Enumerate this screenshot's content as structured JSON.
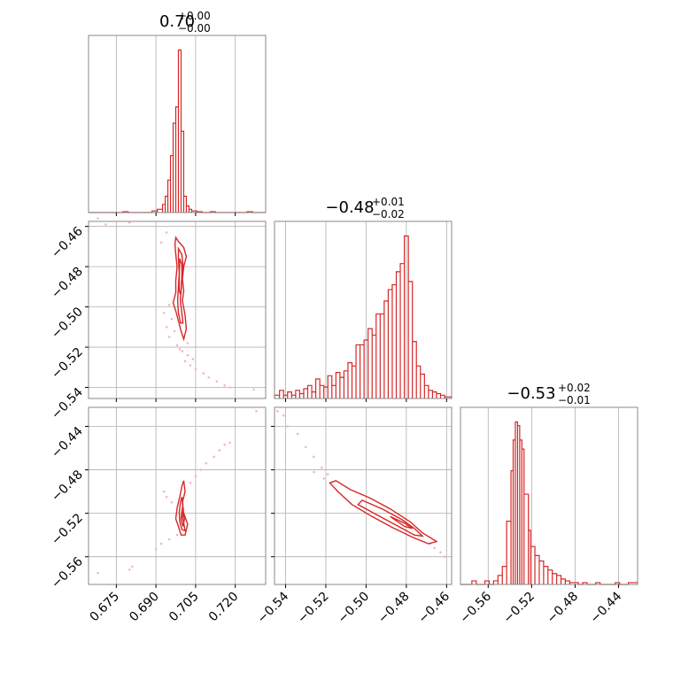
{
  "chart_data": [
    {
      "panel": "hist-p0",
      "type": "histogram",
      "title": {
        "value": "0.70",
        "plus": "+0.00",
        "minus": "−0.00"
      },
      "xlim": [
        0.6645,
        0.7315
      ],
      "x_ticks": [
        0.675,
        0.69,
        0.705,
        0.72
      ],
      "bins": [
        [
          0.6775,
          0.6795,
          0.005
        ],
        [
          0.6885,
          0.6905,
          0.01
        ],
        [
          0.6905,
          0.6925,
          0.02
        ],
        [
          0.6925,
          0.6935,
          0.05
        ],
        [
          0.6935,
          0.6945,
          0.1
        ],
        [
          0.6945,
          0.6955,
          0.2
        ],
        [
          0.6955,
          0.6965,
          0.35
        ],
        [
          0.6965,
          0.6975,
          0.55
        ],
        [
          0.6975,
          0.6985,
          0.65
        ],
        [
          0.6985,
          0.6995,
          1.0
        ],
        [
          0.6995,
          0.7005,
          0.5
        ],
        [
          0.7005,
          0.7015,
          0.1
        ],
        [
          0.7015,
          0.7025,
          0.04
        ],
        [
          0.7025,
          0.7035,
          0.02
        ],
        [
          0.7035,
          0.7055,
          0.01
        ],
        [
          0.7055,
          0.7075,
          0.005
        ],
        [
          0.7105,
          0.7125,
          0.005
        ],
        [
          0.7245,
          0.7265,
          0.005
        ]
      ]
    },
    {
      "panel": "hist-p1",
      "type": "histogram",
      "title": {
        "value": "−0.48",
        "plus": "+0.01",
        "minus": "−0.02"
      },
      "xlim": [
        -0.5455,
        -0.4575
      ],
      "x_ticks": [
        -0.54,
        -0.52,
        -0.5,
        -0.48,
        -0.46
      ],
      "ytick_labels_hidden": true,
      "bins": [
        [
          -0.5455,
          -0.543,
          0.02
        ],
        [
          -0.543,
          -0.541,
          0.05
        ],
        [
          -0.541,
          -0.539,
          0.02
        ],
        [
          -0.539,
          -0.537,
          0.04
        ],
        [
          -0.537,
          -0.535,
          0.02
        ],
        [
          -0.535,
          -0.533,
          0.05
        ],
        [
          -0.533,
          -0.531,
          0.03
        ],
        [
          -0.531,
          -0.529,
          0.06
        ],
        [
          -0.529,
          -0.527,
          0.08
        ],
        [
          -0.527,
          -0.525,
          0.04
        ],
        [
          -0.525,
          -0.523,
          0.12
        ],
        [
          -0.523,
          -0.521,
          0.08
        ],
        [
          -0.521,
          -0.519,
          0.07
        ],
        [
          -0.519,
          -0.517,
          0.14
        ],
        [
          -0.517,
          -0.515,
          0.08
        ],
        [
          -0.515,
          -0.513,
          0.16
        ],
        [
          -0.513,
          -0.511,
          0.13
        ],
        [
          -0.511,
          -0.509,
          0.17
        ],
        [
          -0.509,
          -0.507,
          0.22
        ],
        [
          -0.507,
          -0.505,
          0.2
        ],
        [
          -0.505,
          -0.503,
          0.33
        ],
        [
          -0.503,
          -0.501,
          0.33
        ],
        [
          -0.501,
          -0.499,
          0.36
        ],
        [
          -0.499,
          -0.497,
          0.43
        ],
        [
          -0.497,
          -0.495,
          0.39
        ],
        [
          -0.495,
          -0.493,
          0.52
        ],
        [
          -0.493,
          -0.491,
          0.52
        ],
        [
          -0.491,
          -0.489,
          0.6
        ],
        [
          -0.489,
          -0.487,
          0.67
        ],
        [
          -0.487,
          -0.485,
          0.7
        ],
        [
          -0.485,
          -0.483,
          0.78
        ],
        [
          -0.483,
          -0.481,
          0.83
        ],
        [
          -0.481,
          -0.479,
          1.0
        ],
        [
          -0.479,
          -0.477,
          0.72
        ],
        [
          -0.477,
          -0.475,
          0.35
        ],
        [
          -0.475,
          -0.473,
          0.2
        ],
        [
          -0.473,
          -0.471,
          0.15
        ],
        [
          -0.471,
          -0.469,
          0.08
        ],
        [
          -0.469,
          -0.467,
          0.05
        ],
        [
          -0.467,
          -0.465,
          0.04
        ],
        [
          -0.465,
          -0.463,
          0.03
        ],
        [
          -0.463,
          -0.461,
          0.02
        ],
        [
          -0.461,
          -0.4575,
          0.01
        ]
      ]
    },
    {
      "panel": "hist-p2",
      "type": "histogram",
      "title": {
        "value": "−0.53",
        "plus": "+0.02",
        "minus": "−0.01"
      },
      "xlim": [
        -0.5855,
        -0.4225
      ],
      "x_ticks": [
        -0.56,
        -0.52,
        -0.48,
        -0.44
      ],
      "bins": [
        [
          -0.575,
          -0.571,
          0.02
        ],
        [
          -0.563,
          -0.559,
          0.02
        ],
        [
          -0.555,
          -0.551,
          0.02
        ],
        [
          -0.551,
          -0.547,
          0.05
        ],
        [
          -0.547,
          -0.543,
          0.1
        ],
        [
          -0.543,
          -0.539,
          0.35
        ],
        [
          -0.539,
          -0.537,
          0.63
        ],
        [
          -0.537,
          -0.535,
          0.8
        ],
        [
          -0.535,
          -0.533,
          0.9
        ],
        [
          -0.533,
          -0.531,
          0.88
        ],
        [
          -0.531,
          -0.529,
          0.8
        ],
        [
          -0.529,
          -0.527,
          0.75
        ],
        [
          -0.527,
          -0.523,
          0.5
        ],
        [
          -0.523,
          -0.521,
          0.3
        ],
        [
          -0.521,
          -0.517,
          0.21
        ],
        [
          -0.517,
          -0.513,
          0.16
        ],
        [
          -0.513,
          -0.509,
          0.13
        ],
        [
          -0.509,
          -0.505,
          0.1
        ],
        [
          -0.505,
          -0.501,
          0.08
        ],
        [
          -0.501,
          -0.497,
          0.06
        ],
        [
          -0.497,
          -0.493,
          0.05
        ],
        [
          -0.493,
          -0.489,
          0.03
        ],
        [
          -0.489,
          -0.485,
          0.02
        ],
        [
          -0.485,
          -0.477,
          0.01
        ],
        [
          -0.473,
          -0.469,
          0.01
        ],
        [
          -0.461,
          -0.457,
          0.01
        ],
        [
          -0.443,
          -0.439,
          0.01
        ],
        [
          -0.431,
          -0.4225,
          0.01
        ]
      ]
    },
    {
      "panel": "corner-p0-p1",
      "type": "contour-scatter",
      "xlim": [
        0.6645,
        0.7315
      ],
      "ylim": [
        -0.5455,
        -0.4575
      ],
      "x_ticks": [
        0.675,
        0.69,
        0.705,
        0.72
      ],
      "y_ticks": [
        -0.46,
        -0.48,
        -0.5,
        -0.52,
        -0.54
      ],
      "contours": [
        [
          [
            0.6975,
            -0.4655
          ],
          [
            0.6985,
            -0.4675
          ],
          [
            0.7005,
            -0.4705
          ],
          [
            0.7015,
            -0.475
          ],
          [
            0.7005,
            -0.48
          ],
          [
            0.7,
            -0.486
          ],
          [
            0.7005,
            -0.492
          ],
          [
            0.7,
            -0.497
          ],
          [
            0.701,
            -0.504
          ],
          [
            0.7015,
            -0.511
          ],
          [
            0.7005,
            -0.516
          ],
          [
            0.6995,
            -0.512
          ],
          [
            0.6985,
            -0.507
          ],
          [
            0.6975,
            -0.502
          ],
          [
            0.6965,
            -0.498
          ],
          [
            0.6975,
            -0.493
          ],
          [
            0.6975,
            -0.487
          ],
          [
            0.698,
            -0.48
          ],
          [
            0.6975,
            -0.474
          ],
          [
            0.6972,
            -0.469
          ],
          [
            0.6975,
            -0.4655
          ]
        ],
        [
          [
            0.6985,
            -0.471
          ],
          [
            0.6998,
            -0.474
          ],
          [
            0.7002,
            -0.479
          ],
          [
            0.6998,
            -0.485
          ],
          [
            0.6995,
            -0.491
          ],
          [
            0.6992,
            -0.497
          ],
          [
            0.6998,
            -0.503
          ],
          [
            0.7002,
            -0.508
          ],
          [
            0.6993,
            -0.508
          ],
          [
            0.6985,
            -0.503
          ],
          [
            0.6982,
            -0.497
          ],
          [
            0.6985,
            -0.49
          ],
          [
            0.6988,
            -0.483
          ],
          [
            0.6985,
            -0.476
          ],
          [
            0.6985,
            -0.471
          ]
        ],
        [
          [
            0.699,
            -0.476
          ],
          [
            0.6998,
            -0.479
          ],
          [
            0.6998,
            -0.486
          ],
          [
            0.6994,
            -0.494
          ],
          [
            0.6988,
            -0.492
          ],
          [
            0.6988,
            -0.485
          ],
          [
            0.699,
            -0.476
          ]
        ]
      ],
      "scatter": [
        [
          0.668,
          -0.456
        ],
        [
          0.671,
          -0.459
        ],
        [
          0.68,
          -0.458
        ],
        [
          0.694,
          -0.463
        ],
        [
          0.692,
          -0.468
        ],
        [
          0.695,
          -0.499
        ],
        [
          0.693,
          -0.503
        ],
        [
          0.696,
          -0.506
        ],
        [
          0.694,
          -0.51
        ],
        [
          0.697,
          -0.512
        ],
        [
          0.695,
          -0.515
        ],
        [
          0.698,
          -0.519
        ],
        [
          0.699,
          -0.521
        ],
        [
          0.702,
          -0.524
        ],
        [
          0.701,
          -0.527
        ],
        [
          0.703,
          -0.529
        ],
        [
          0.705,
          -0.531
        ],
        [
          0.708,
          -0.533
        ],
        [
          0.71,
          -0.535
        ],
        [
          0.713,
          -0.537
        ],
        [
          0.716,
          -0.539
        ],
        [
          0.718,
          -0.54
        ],
        [
          0.727,
          -0.541
        ],
        [
          0.702,
          -0.518
        ],
        [
          0.7,
          -0.522
        ],
        [
          0.704,
          -0.526
        ]
      ]
    },
    {
      "panel": "corner-p0-p2",
      "type": "contour-scatter",
      "xlim": [
        0.6645,
        0.7315
      ],
      "ylim": [
        -0.5855,
        -0.4225
      ],
      "x_ticks": [
        0.675,
        0.69,
        0.705,
        0.72
      ],
      "y_ticks": [
        -0.44,
        -0.48,
        -0.52,
        -0.56
      ],
      "contours": [
        [
          [
            0.7005,
            -0.49
          ],
          [
            0.701,
            -0.5
          ],
          [
            0.7,
            -0.51
          ],
          [
            0.7005,
            -0.52
          ],
          [
            0.702,
            -0.53
          ],
          [
            0.701,
            -0.54
          ],
          [
            0.6995,
            -0.54
          ],
          [
            0.6985,
            -0.532
          ],
          [
            0.6975,
            -0.525
          ],
          [
            0.698,
            -0.515
          ],
          [
            0.699,
            -0.505
          ],
          [
            0.6998,
            -0.495
          ],
          [
            0.7005,
            -0.49
          ]
        ],
        [
          [
            0.6998,
            -0.505
          ],
          [
            0.7002,
            -0.512
          ],
          [
            0.6997,
            -0.52
          ],
          [
            0.7005,
            -0.529
          ],
          [
            0.701,
            -0.536
          ],
          [
            0.6998,
            -0.535
          ],
          [
            0.699,
            -0.528
          ],
          [
            0.6988,
            -0.519
          ],
          [
            0.6992,
            -0.511
          ],
          [
            0.6998,
            -0.505
          ]
        ],
        [
          [
            0.6998,
            -0.518
          ],
          [
            0.7008,
            -0.525
          ],
          [
            0.7002,
            -0.532
          ],
          [
            0.6995,
            -0.526
          ],
          [
            0.6998,
            -0.518
          ]
        ]
      ],
      "scatter": [
        [
          0.668,
          -0.575
        ],
        [
          0.68,
          -0.572
        ],
        [
          0.681,
          -0.569
        ],
        [
          0.69,
          -0.553
        ],
        [
          0.692,
          -0.548
        ],
        [
          0.695,
          -0.544
        ],
        [
          0.698,
          -0.54
        ],
        [
          0.703,
          -0.492
        ],
        [
          0.705,
          -0.486
        ],
        [
          0.707,
          -0.48
        ],
        [
          0.709,
          -0.474
        ],
        [
          0.712,
          -0.468
        ],
        [
          0.714,
          -0.462
        ],
        [
          0.716,
          -0.457
        ],
        [
          0.718,
          -0.455
        ],
        [
          0.728,
          -0.426
        ],
        [
          0.693,
          -0.5
        ],
        [
          0.694,
          -0.505
        ],
        [
          0.696,
          -0.51
        ]
      ]
    },
    {
      "panel": "corner-p1-p2",
      "type": "contour-scatter",
      "xlim": [
        -0.5455,
        -0.4575
      ],
      "ylim": [
        -0.5855,
        -0.4225
      ],
      "x_ticks": [
        -0.54,
        -0.52,
        -0.5,
        -0.48,
        -0.46
      ],
      "y_ticks": [
        -0.44,
        -0.48,
        -0.52,
        -0.56
      ],
      "ytick_labels_hidden": true,
      "contours": [
        [
          [
            -0.515,
            -0.49
          ],
          [
            -0.508,
            -0.498
          ],
          [
            -0.498,
            -0.506
          ],
          [
            -0.488,
            -0.516
          ],
          [
            -0.478,
            -0.528
          ],
          [
            -0.472,
            -0.538
          ],
          [
            -0.465,
            -0.546
          ],
          [
            -0.469,
            -0.548
          ],
          [
            -0.477,
            -0.542
          ],
          [
            -0.487,
            -0.533
          ],
          [
            -0.497,
            -0.523
          ],
          [
            -0.507,
            -0.512
          ],
          [
            -0.514,
            -0.5
          ],
          [
            -0.518,
            -0.492
          ],
          [
            -0.515,
            -0.49
          ]
        ],
        [
          [
            -0.502,
            -0.508
          ],
          [
            -0.492,
            -0.516
          ],
          [
            -0.482,
            -0.526
          ],
          [
            -0.476,
            -0.534
          ],
          [
            -0.472,
            -0.541
          ],
          [
            -0.476,
            -0.54
          ],
          [
            -0.484,
            -0.532
          ],
          [
            -0.494,
            -0.522
          ],
          [
            -0.504,
            -0.512
          ],
          [
            -0.502,
            -0.508
          ]
        ],
        [
          [
            -0.488,
            -0.523
          ],
          [
            -0.481,
            -0.529
          ],
          [
            -0.477,
            -0.534
          ],
          [
            -0.481,
            -0.532
          ],
          [
            -0.488,
            -0.523
          ]
        ]
      ],
      "scatter": [
        [
          -0.544,
          -0.426
        ],
        [
          -0.541,
          -0.43
        ],
        [
          -0.539,
          -0.44
        ],
        [
          -0.534,
          -0.447
        ],
        [
          -0.53,
          -0.459
        ],
        [
          -0.526,
          -0.468
        ],
        [
          -0.522,
          -0.478
        ],
        [
          -0.519,
          -0.484
        ],
        [
          -0.468,
          -0.548
        ],
        [
          -0.466,
          -0.552
        ],
        [
          -0.463,
          -0.556
        ],
        [
          -0.461,
          -0.56
        ],
        [
          -0.521,
          -0.488
        ],
        [
          -0.526,
          -0.482
        ]
      ]
    }
  ]
}
